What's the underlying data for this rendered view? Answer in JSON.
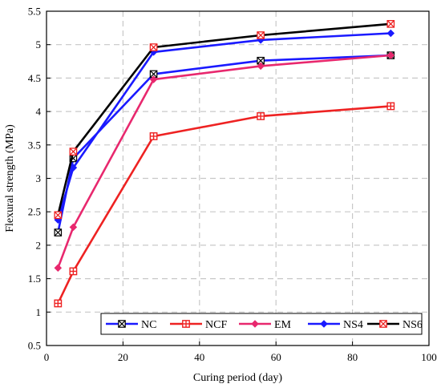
{
  "chart_data": {
    "type": "line",
    "xlabel": "Curing period (day)",
    "ylabel": "Flexural strength (MPa)",
    "xlim": [
      0,
      100
    ],
    "ylim": [
      0.5,
      5.5
    ],
    "xticks": [
      0,
      20,
      40,
      60,
      80,
      100
    ],
    "yticks": [
      0.5,
      1,
      1.5,
      2,
      2.5,
      3,
      3.5,
      4,
      4.5,
      5,
      5.5
    ],
    "grid": true,
    "legend_position": "bottom-right",
    "x": [
      3,
      7,
      28,
      56,
      90
    ],
    "series": [
      {
        "name": "NC",
        "color": "#1a1aff",
        "marker": "square-x",
        "values": [
          2.19,
          3.3,
          4.56,
          4.76,
          4.84
        ]
      },
      {
        "name": "NCF",
        "color": "#ee2222",
        "marker": "square-plus",
        "values": [
          1.13,
          1.61,
          3.63,
          3.93,
          4.08
        ]
      },
      {
        "name": "EM",
        "color": "#e8286e",
        "marker": "diamond",
        "values": [
          1.66,
          2.27,
          4.48,
          4.68,
          4.84
        ]
      },
      {
        "name": "NS4",
        "color": "#1a1aff",
        "marker": "diamond",
        "values": [
          2.38,
          3.16,
          4.89,
          5.07,
          5.17
        ]
      },
      {
        "name": "NS6",
        "color": "#000000",
        "marker": "square-x-red",
        "values": [
          2.45,
          3.4,
          4.96,
          5.14,
          5.31
        ]
      }
    ]
  }
}
